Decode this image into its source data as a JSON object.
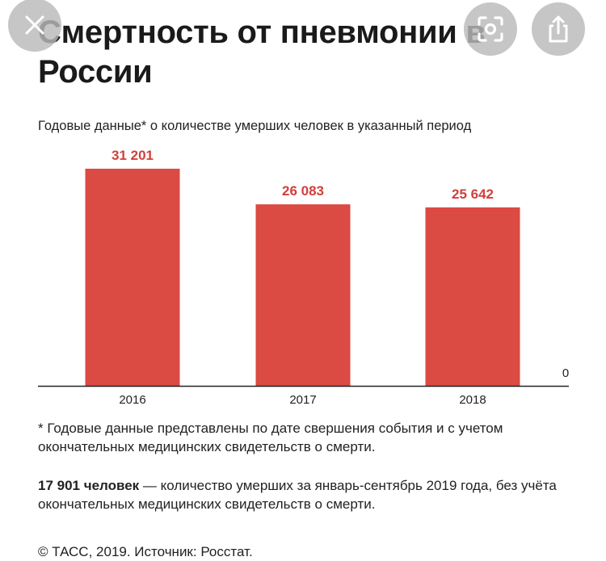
{
  "title": "Смертность от пневмонии в России",
  "subtitle": "Годовые данные* о количестве умерших человек в указанный период",
  "chart_data": {
    "type": "bar",
    "categories": [
      "2016",
      "2017",
      "2018"
    ],
    "values": [
      31201,
      26083,
      25642
    ],
    "value_labels": [
      "31 201",
      "26 083",
      "25 642"
    ],
    "baseline_label": "0",
    "ylim": [
      0,
      31201
    ],
    "grid": false,
    "bar_color": "#db4a43",
    "label_color": "#d23f3a"
  },
  "footnote": "* Годовые данные представлены по дате свершения события и с учетом окончательных медицинских свидетельств о смерти.",
  "note": {
    "strong": "17 901 человек",
    "text": " — количество умерших за январь-сентябрь 2019 года, без учёта окончательных медицинских свидетельств о смерти."
  },
  "credit": "© ТАСС, 2019. Источник: Росстат.",
  "overlay": {
    "close_icon": "close-icon",
    "lens_icon": "lens-icon",
    "share_icon": "share-icon"
  }
}
